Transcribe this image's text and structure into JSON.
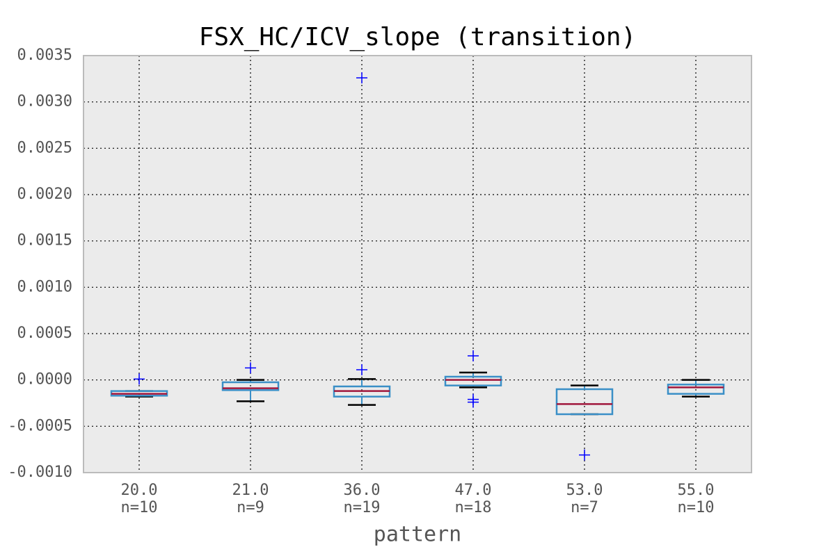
{
  "chart_data": {
    "type": "box",
    "title": "FSX_HC/ICV_slope (transition)",
    "x_label": "pattern",
    "categories": [
      "20.0",
      "21.0",
      "36.0",
      "47.0",
      "53.0",
      "55.0"
    ],
    "count_labels": [
      "n=10",
      "n=9",
      "n=19",
      "n=18",
      "n=7",
      "n=10"
    ],
    "boxes": [
      {
        "whislo": -0.00018,
        "q1": -0.00017,
        "med": -0.00015,
        "q3": -0.00012,
        "whishi": -0.00012,
        "fliers": [
          1e-05
        ]
      },
      {
        "whislo": -0.00023,
        "q1": -0.00011,
        "med": -9e-05,
        "q3": -2.5e-05,
        "whishi": 0.0,
        "fliers": [
          0.00013
        ]
      },
      {
        "whislo": -0.00027,
        "q1": -0.00018,
        "med": -0.00012,
        "q3": -7e-05,
        "whishi": 1e-05,
        "fliers": [
          0.00011,
          0.00326
        ]
      },
      {
        "whislo": -8e-05,
        "q1": -6e-05,
        "med": 0.0,
        "q3": 3.5e-05,
        "whishi": 8e-05,
        "fliers": [
          0.00026,
          -0.00021,
          -0.00024
        ]
      },
      {
        "whislo": -0.00037,
        "q1": -0.00037,
        "med": -0.00026,
        "q3": -0.0001,
        "whishi": -6e-05,
        "fliers": [
          -0.00081
        ]
      },
      {
        "whislo": -0.00018,
        "q1": -0.00015,
        "med": -8e-05,
        "q3": -5e-05,
        "whishi": 0.0,
        "fliers": []
      }
    ],
    "box_color": "#3a8fc7",
    "median_color": "#a0173c",
    "whisker_color": "#3a8fc7",
    "cap_color": "#000000",
    "flier_color": "#0000ff",
    "ylim": [
      -0.001,
      0.0035
    ],
    "yticks": [
      {
        "value": -0.001,
        "label": "-0.0010"
      },
      {
        "value": -0.0005,
        "label": "-0.0005"
      },
      {
        "value": 0,
        "label": "0.0000"
      },
      {
        "value": 0.0005,
        "label": "0.0005"
      },
      {
        "value": 0.001,
        "label": "0.0010"
      },
      {
        "value": 0.0015,
        "label": "0.0015"
      },
      {
        "value": 0.002,
        "label": "0.0020"
      },
      {
        "value": 0.0025,
        "label": "0.0025"
      },
      {
        "value": 0.003,
        "label": "0.0030"
      },
      {
        "value": 0.0035,
        "label": "0.0035"
      }
    ],
    "grid": true
  }
}
